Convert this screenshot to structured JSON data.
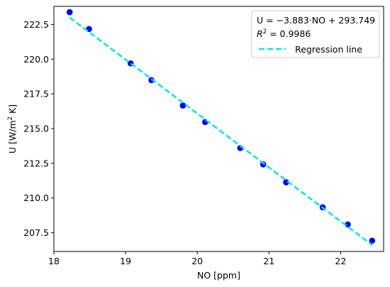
{
  "chart_data": {
    "type": "scatter",
    "xlabel": "NO [ppm]",
    "ylabel_main": "U [W/m",
    "ylabel_sup": "2",
    "ylabel_tail": " K]",
    "xlim": [
      18,
      22.6
    ],
    "ylim": [
      206.15,
      223.8
    ],
    "xticks": [
      18,
      19,
      20,
      21,
      22
    ],
    "yticks": [
      207.5,
      210.0,
      212.5,
      215.0,
      217.5,
      220.0,
      222.5
    ],
    "grid": false,
    "legend_position": "top-right",
    "series": [
      {
        "marker_color": "#0000ff",
        "points": [
          {
            "x": 18.22,
            "y": 223.38
          },
          {
            "x": 18.49,
            "y": 222.17
          },
          {
            "x": 19.07,
            "y": 219.7
          },
          {
            "x": 19.36,
            "y": 218.49
          },
          {
            "x": 19.8,
            "y": 216.66
          },
          {
            "x": 20.11,
            "y": 215.47
          },
          {
            "x": 20.6,
            "y": 213.6
          },
          {
            "x": 20.92,
            "y": 212.42
          },
          {
            "x": 21.24,
            "y": 211.13
          },
          {
            "x": 21.75,
            "y": 209.33
          },
          {
            "x": 22.1,
            "y": 208.1
          },
          {
            "x": 22.44,
            "y": 206.93
          }
        ]
      },
      {
        "name": "Regression line",
        "type": "line",
        "style": "dashed",
        "color": "#00e5ee",
        "slope": -3.883,
        "intercept": 293.749,
        "x_range": [
          18.22,
          22.44
        ]
      }
    ],
    "legend": {
      "equation": "U = −3.883·NO + 293.749",
      "r2_label": "R",
      "r2_sup": "2",
      "r2_value": " = 0.9986",
      "line_label": "Regression line"
    }
  }
}
